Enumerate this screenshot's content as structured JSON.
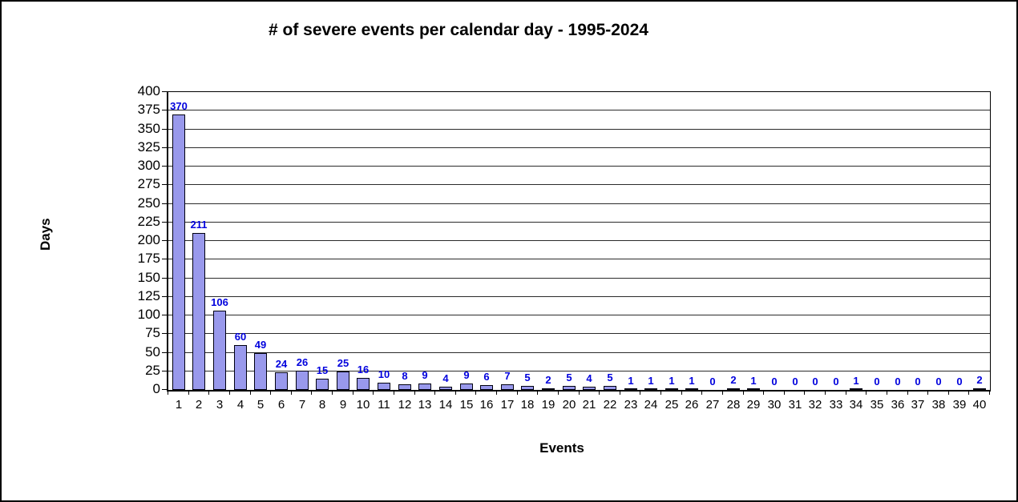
{
  "chart_data": {
    "type": "bar",
    "title": "# of severe events per calendar day - 1995-2024",
    "xlabel": "Events",
    "ylabel": "Days",
    "categories": [
      1,
      2,
      3,
      4,
      5,
      6,
      7,
      8,
      9,
      10,
      11,
      12,
      13,
      14,
      15,
      16,
      17,
      18,
      19,
      20,
      21,
      22,
      23,
      24,
      25,
      26,
      27,
      28,
      29,
      30,
      31,
      32,
      33,
      34,
      35,
      36,
      37,
      38,
      39,
      40
    ],
    "values": [
      370,
      211,
      106,
      60,
      49,
      24,
      26,
      15,
      25,
      16,
      10,
      8,
      9,
      4,
      9,
      6,
      7,
      5,
      2,
      5,
      4,
      5,
      1,
      1,
      1,
      1,
      0,
      2,
      1,
      0,
      0,
      0,
      0,
      1,
      0,
      0,
      0,
      0,
      0,
      2
    ],
    "ylim": [
      0,
      400
    ],
    "ytick_step": 25,
    "grid": true,
    "legend": "none",
    "data_labels_shown": true,
    "colors": {
      "bar_fill": "#9999ec",
      "bar_border": "#000010",
      "data_label": "#0000dd",
      "gridline": "#2b2b2b",
      "axis": "#000000",
      "text": "#000000",
      "background": "#ffffff"
    }
  }
}
